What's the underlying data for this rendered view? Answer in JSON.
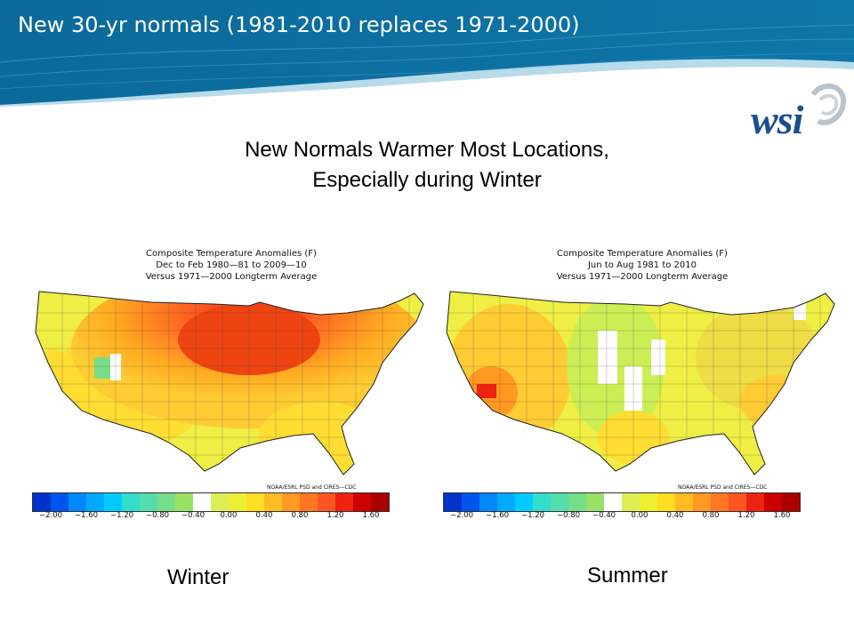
{
  "slide": {
    "title": "New 30-yr normals (1981-2010 replaces 1971-2000)",
    "subtitle_line1": "New Normals Warmer Most Locations,",
    "subtitle_line2": "Especially during Winter",
    "header_color": "#0e6d9c",
    "logo_text": "wsi",
    "logo_icon": "wsi-swirl-logo"
  },
  "maps": [
    {
      "id": "winter",
      "title_line1": "Composite Temperature Anomalies (F)",
      "title_line2": "Dec to Feb 1980—81 to 2009—10",
      "title_line3": "Versus 1971—2000 Longterm Average",
      "credit": "NOAA/ESRL PSD and CIRES—CDC",
      "caption": "Winter",
      "dominant_anomaly": "warm, strongest in northern plains and upper midwest"
    },
    {
      "id": "summer",
      "title_line1": "Composite Temperature Anomalies (F)",
      "title_line2": "Jun to Aug 1981 to 2010",
      "title_line3": "Versus 1971—2000 Longterm Average",
      "credit": "NOAA/ESRL PSD and CIRES—CDC",
      "caption": "Summer",
      "dominant_anomaly": "mostly slight warming, near zero in central plains, strongest in desert southwest"
    }
  ],
  "legend": {
    "tick_labels": [
      "−2.00",
      "−1.60",
      "−1.20",
      "−0.80",
      "−0.40",
      "0.00",
      "0.40",
      "0.80",
      "1.20",
      "1.60"
    ],
    "colors": [
      "#0033cc",
      "#0055ee",
      "#0088ff",
      "#00aaff",
      "#00ccff",
      "#33ddcc",
      "#55ddaa",
      "#77dd88",
      "#99e066",
      "#ffffff",
      "#ddee55",
      "#eeee33",
      "#ffdd22",
      "#ffbb22",
      "#ff9922",
      "#ff7722",
      "#ff5522",
      "#ee2211",
      "#cc0000",
      "#aa0000"
    ]
  }
}
